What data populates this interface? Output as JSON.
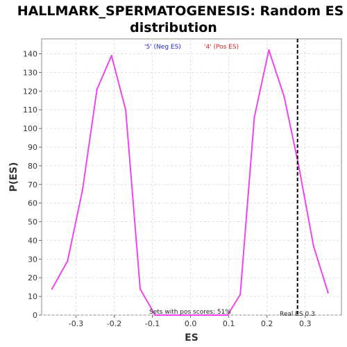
{
  "chart_data": {
    "type": "line",
    "title_line1": "HALLMARK_SPERMATOGENESIS: Random ES",
    "title_line2": "distribution",
    "xlabel": "ES",
    "ylabel": "P(ES)",
    "xlim": [
      -0.39,
      0.395
    ],
    "ylim": [
      0,
      148
    ],
    "x_ticks": [
      -0.3,
      -0.2,
      -0.1,
      0.0,
      0.1,
      0.2,
      0.3
    ],
    "x_tick_labels": [
      "-0.3",
      "-0.2",
      "-0.1",
      "0.0",
      "0.1",
      "0.2",
      "0.3"
    ],
    "y_ticks": [
      0,
      10,
      20,
      30,
      40,
      50,
      60,
      70,
      80,
      90,
      100,
      110,
      120,
      130,
      140
    ],
    "y_tick_labels": [
      "0",
      "10",
      "20",
      "30",
      "40",
      "50",
      "60",
      "70",
      "80",
      "90",
      "100",
      "110",
      "120",
      "130",
      "140"
    ],
    "grid": true,
    "line_color": "#ee44ee",
    "x": [
      -0.363,
      -0.322,
      -0.283,
      -0.245,
      -0.207,
      -0.17,
      -0.132,
      -0.093,
      -0.055,
      -0.017,
      0.021,
      0.059,
      0.097,
      0.13,
      0.167,
      0.205,
      0.245,
      0.283,
      0.322,
      0.36
    ],
    "y": [
      14,
      29,
      67,
      121,
      139,
      110,
      14,
      0,
      0,
      0,
      0,
      0,
      0,
      11,
      106,
      142,
      117,
      80,
      37,
      12
    ],
    "legend": {
      "neg_label": "'5' (Neg ES)",
      "neg_color": "#2222dd",
      "pos_label": "'4' (Pos ES)",
      "pos_color": "#dd2222"
    },
    "real_es": {
      "value": 0.28,
      "label": "Real ES 0.3"
    },
    "pos_scores_text": "Sets with pos scores: 51%"
  }
}
